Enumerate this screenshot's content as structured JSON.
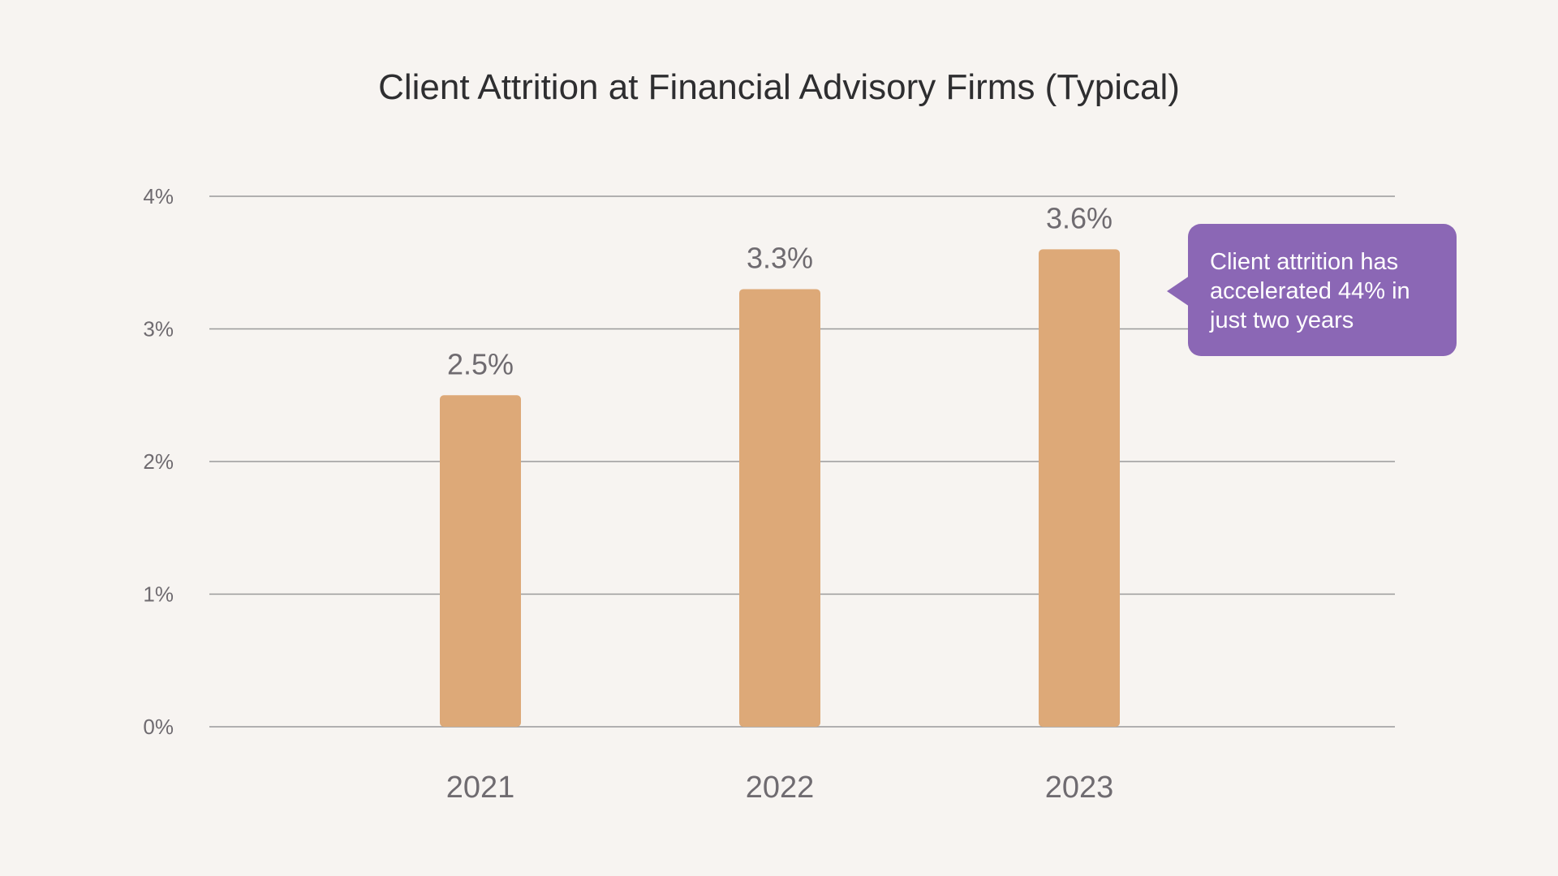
{
  "chart_data": {
    "type": "bar",
    "title": "Client Attrition at Financial Advisory Firms (Typical)",
    "categories": [
      "2021",
      "2022",
      "2023"
    ],
    "values": [
      2.5,
      3.3,
      3.6
    ],
    "value_labels": [
      "2.5%",
      "3.3%",
      "3.6%"
    ],
    "y_ticks": [
      0,
      1,
      2,
      3,
      4
    ],
    "y_tick_labels": [
      "0%",
      "1%",
      "2%",
      "3%",
      "4%"
    ],
    "ylim": [
      0,
      4
    ],
    "xlabel": "",
    "ylabel": "",
    "grid": true,
    "annotation": {
      "text_lines": [
        "Client attrition has",
        "accelerated 44% in",
        "just two years"
      ],
      "points_to": "2023"
    }
  },
  "colors": {
    "background": "#f7f4f1",
    "bar": "#dda978",
    "gridline": "#9a9a9a",
    "axis_text": "#6f6b70",
    "title": "#2e2e30",
    "callout": "#8b67b5",
    "callout_text": "#ffffff"
  }
}
